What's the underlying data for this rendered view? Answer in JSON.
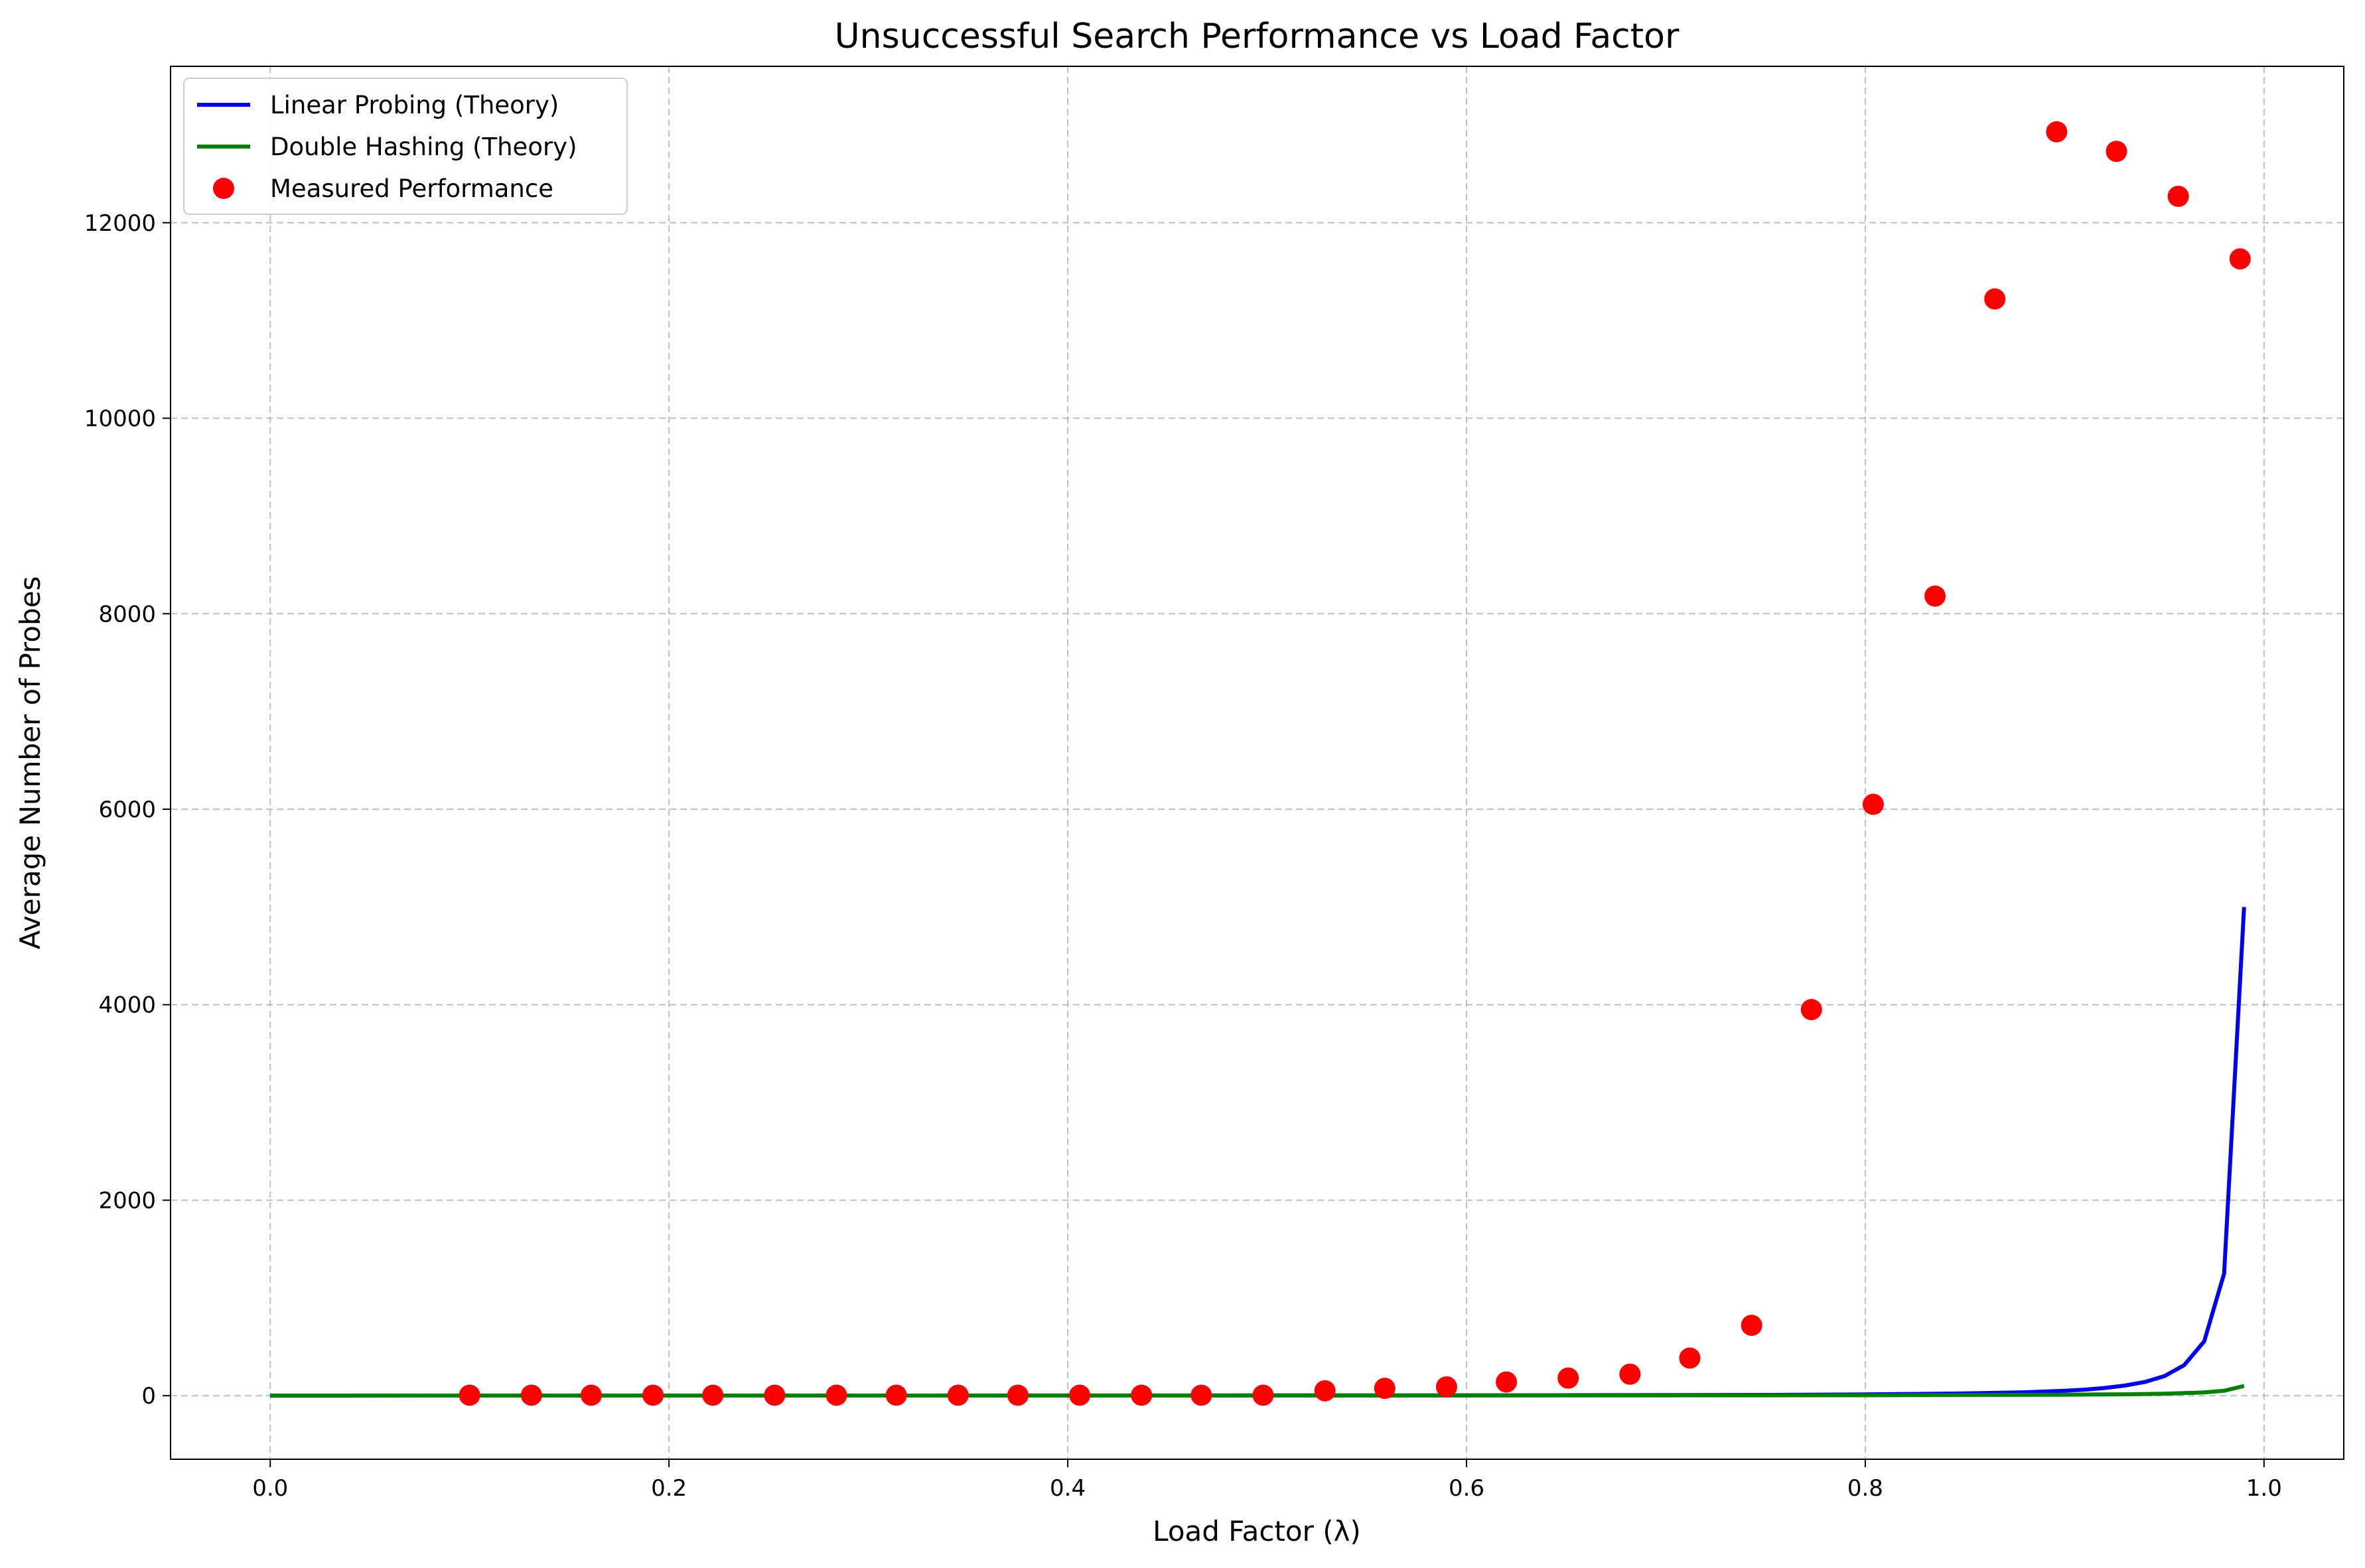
{
  "chart_data": {
    "type": "line",
    "title": "Unsuccessful Search Performance vs Load Factor",
    "xlabel": "Load Factor (λ)",
    "ylabel": "Average Number of Probes",
    "xlim": [
      -0.05,
      1.04
    ],
    "ylim": [
      -650,
      13600
    ],
    "xticks": [
      0.0,
      0.2,
      0.4,
      0.6,
      0.8,
      1.0
    ],
    "xtick_labels": [
      "0.0",
      "0.2",
      "0.4",
      "0.6",
      "0.8",
      "1.0"
    ],
    "yticks": [
      0,
      2000,
      4000,
      6000,
      8000,
      10000,
      12000
    ],
    "ytick_labels": [
      "0",
      "2000",
      "4000",
      "6000",
      "8000",
      "10000",
      "12000"
    ],
    "grid": true,
    "legend_position": "top-left",
    "series": [
      {
        "name": "Linear Probing (Theory)",
        "kind": "line",
        "color": "#0000ee",
        "x": [
          0.0,
          0.1,
          0.2,
          0.3,
          0.4,
          0.5,
          0.6,
          0.7,
          0.75,
          0.8,
          0.85,
          0.88,
          0.9,
          0.91,
          0.92,
          0.93,
          0.94,
          0.95,
          0.96,
          0.97,
          0.98,
          0.99
        ],
        "y": [
          1,
          1.2,
          1.3,
          1.5,
          1.9,
          2.5,
          3.6,
          6.1,
          8.5,
          13,
          23,
          35,
          50,
          62,
          79,
          103,
          139,
          200,
          313,
          556,
          1250,
          5000
        ]
      },
      {
        "name": "Double Hashing (Theory)",
        "kind": "line",
        "color": "#008000",
        "x": [
          0.0,
          0.1,
          0.2,
          0.3,
          0.4,
          0.5,
          0.6,
          0.7,
          0.8,
          0.9,
          0.93,
          0.95,
          0.97,
          0.98,
          0.99
        ],
        "y": [
          1,
          1.1,
          1.25,
          1.4,
          1.7,
          2,
          2.5,
          3.3,
          5,
          10,
          14,
          20,
          33,
          50,
          100
        ]
      },
      {
        "name": "Measured Performance",
        "kind": "scatter",
        "color": "#ff0000",
        "x": [
          0.1,
          0.131,
          0.161,
          0.192,
          0.222,
          0.253,
          0.284,
          0.314,
          0.345,
          0.375,
          0.406,
          0.437,
          0.467,
          0.498,
          0.529,
          0.559,
          0.59,
          0.62,
          0.651,
          0.682,
          0.712,
          0.743,
          0.773,
          0.804,
          0.835,
          0.865,
          0.896,
          0.926,
          0.957,
          0.988
        ],
        "y": [
          5,
          5,
          5,
          5,
          5,
          5,
          5,
          5,
          5,
          5,
          5,
          5,
          5,
          5,
          50,
          75,
          90,
          140,
          180,
          220,
          385,
          720,
          3950,
          6050,
          8180,
          11220,
          12930,
          12730,
          12270,
          11630
        ]
      }
    ]
  }
}
